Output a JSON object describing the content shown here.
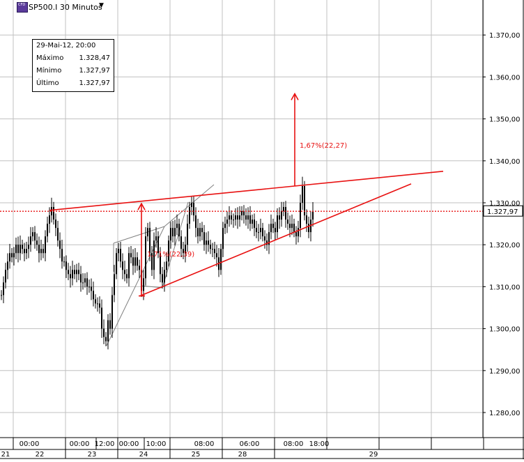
{
  "window": {
    "symbol_title": "SP500.I 30 Minutos",
    "dropdown_icon": "caret-down-icon",
    "symbol_icon": "cfd-icon",
    "icon_text": "CFD"
  },
  "info_box": {
    "date": "29-Mai-12, 20:00",
    "rows": [
      {
        "label": "Máximo",
        "value": "1.328,47"
      },
      {
        "label": "Mínimo",
        "value": "1.327,97"
      },
      {
        "label": "Último",
        "value": "1.327,97"
      }
    ]
  },
  "current_price_label": "1.327,97",
  "colors": {
    "accent": "#e81010",
    "candles": "#000000",
    "grid": "#c0c0c0",
    "wedge_lines": "#808080"
  },
  "annotations": {
    "upper_target_pct": "1,67%(22,27)",
    "lower_target_pct": "1,71%(22,39)"
  },
  "x_axis": {
    "time_labels": [
      "00:00",
      "00:00",
      "12:00",
      "00:00",
      "10:00",
      "08:00",
      "06:00",
      "08:00",
      "18:00"
    ],
    "date_labels": [
      "21",
      "22",
      "23",
      "24",
      "25",
      "28",
      "29"
    ]
  },
  "chart_data": {
    "type": "candlestick",
    "title": "SP500.I 30 Minutos",
    "ylim": [
      1275,
      1380
    ],
    "y_ticks": [
      "1.280,00",
      "1.290,00",
      "1.300,00",
      "1.310,00",
      "1.320,00",
      "1.330,00",
      "1.340,00",
      "1.350,00",
      "1.360,00",
      "1.370,00"
    ],
    "last_price": 1327.97,
    "series": [
      {
        "points": [
          [
            0,
            1308
          ],
          [
            3,
            1311
          ],
          [
            6,
            1314
          ],
          [
            9,
            1316
          ],
          [
            12,
            1318
          ],
          [
            15,
            1317
          ],
          [
            18,
            1318
          ],
          [
            21,
            1320
          ],
          [
            24,
            1318
          ],
          [
            27,
            1320
          ],
          [
            30,
            1319
          ],
          [
            33,
            1318
          ],
          [
            36,
            1319
          ],
          [
            39,
            1320
          ],
          [
            42,
            1322
          ],
          [
            45,
            1323
          ],
          [
            48,
            1321
          ],
          [
            51,
            1320
          ],
          [
            54,
            1318
          ],
          [
            57,
            1319
          ],
          [
            60,
            1318
          ],
          [
            63,
            1322
          ],
          [
            66,
            1325
          ],
          [
            69,
            1327
          ],
          [
            72,
            1329
          ],
          [
            75,
            1326
          ],
          [
            78,
            1324
          ],
          [
            81,
            1321
          ],
          [
            84,
            1319
          ],
          [
            87,
            1316
          ],
          [
            90,
            1316
          ],
          [
            93,
            1314
          ],
          [
            96,
            1313
          ],
          [
            99,
            1312
          ],
          [
            102,
            1314
          ],
          [
            105,
            1313
          ],
          [
            108,
            1314
          ],
          [
            111,
            1313
          ],
          [
            114,
            1311
          ],
          [
            117,
            1311
          ],
          [
            120,
            1312
          ],
          [
            123,
            1310
          ],
          [
            126,
            1310
          ],
          [
            129,
            1309
          ],
          [
            132,
            1307
          ],
          [
            135,
            1306
          ],
          [
            138,
            1306
          ],
          [
            141,
            1305
          ],
          [
            144,
            1300
          ],
          [
            147,
            1298
          ],
          [
            150,
            1297
          ],
          [
            153,
            1302
          ],
          [
            156,
            1300
          ],
          [
            159,
            1308
          ],
          [
            162,
            1313
          ],
          [
            165,
            1318
          ],
          [
            168,
            1319
          ],
          [
            171,
            1316
          ],
          [
            174,
            1314
          ],
          [
            177,
            1313
          ],
          [
            180,
            1312
          ],
          [
            183,
            1318
          ],
          [
            186,
            1317
          ],
          [
            189,
            1315
          ],
          [
            192,
            1317
          ],
          [
            195,
            1315
          ],
          [
            198,
            1314
          ],
          [
            201,
            1309
          ],
          [
            204,
            1312
          ],
          [
            207,
            1322
          ],
          [
            210,
            1324
          ],
          [
            213,
            1318
          ],
          [
            216,
            1314
          ],
          [
            219,
            1321
          ],
          [
            222,
            1322
          ],
          [
            225,
            1318
          ],
          [
            228,
            1313
          ],
          [
            231,
            1311
          ],
          [
            234,
            1314
          ],
          [
            237,
            1316
          ],
          [
            240,
            1321
          ],
          [
            243,
            1324
          ],
          [
            246,
            1322
          ],
          [
            249,
            1324
          ],
          [
            252,
            1325
          ],
          [
            255,
            1322
          ],
          [
            258,
            1319
          ],
          [
            261,
            1318
          ],
          [
            264,
            1320
          ],
          [
            267,
            1325
          ],
          [
            270,
            1329
          ],
          [
            273,
            1330
          ],
          [
            276,
            1327
          ],
          [
            279,
            1324
          ],
          [
            282,
            1322
          ],
          [
            285,
            1324
          ],
          [
            288,
            1323
          ],
          [
            291,
            1320
          ],
          [
            294,
            1321
          ],
          [
            297,
            1320
          ],
          [
            300,
            1319
          ],
          [
            303,
            1319
          ],
          [
            306,
            1318
          ],
          [
            309,
            1317
          ],
          [
            312,
            1314
          ],
          [
            315,
            1319
          ],
          [
            318,
            1324
          ],
          [
            321,
            1325
          ],
          [
            324,
            1326
          ],
          [
            327,
            1327
          ],
          [
            330,
            1326
          ],
          [
            333,
            1326
          ],
          [
            336,
            1327
          ],
          [
            339,
            1326
          ],
          [
            342,
            1327
          ],
          [
            345,
            1328
          ],
          [
            348,
            1327
          ],
          [
            351,
            1326
          ],
          [
            354,
            1327
          ],
          [
            357,
            1325
          ],
          [
            360,
            1326
          ],
          [
            363,
            1324
          ],
          [
            366,
            1323
          ],
          [
            369,
            1323
          ],
          [
            372,
            1324
          ],
          [
            375,
            1322
          ],
          [
            378,
            1321
          ],
          [
            381,
            1320
          ],
          [
            384,
            1323
          ],
          [
            387,
            1325
          ],
          [
            390,
            1324
          ],
          [
            393,
            1323
          ],
          [
            396,
            1327
          ],
          [
            399,
            1326
          ],
          [
            402,
            1328
          ],
          [
            405,
            1329
          ],
          [
            408,
            1326
          ],
          [
            411,
            1325
          ],
          [
            414,
            1324
          ],
          [
            417,
            1325
          ],
          [
            420,
            1323
          ],
          [
            423,
            1322
          ],
          [
            426,
            1324
          ],
          [
            429,
            1330
          ],
          [
            432,
            1334
          ],
          [
            435,
            1327
          ],
          [
            438,
            1325
          ],
          [
            441,
            1323
          ],
          [
            444,
            1326
          ],
          [
            447,
            1327.97
          ]
        ]
      }
    ],
    "trend_lines": [
      {
        "name": "upper-trendline",
        "from": [
          71,
          1328.2
        ],
        "to": [
          636,
          1337.5
        ]
      },
      {
        "name": "lower-trendline",
        "from": [
          201,
          1307.8
        ],
        "to": [
          590,
          1334.5
        ]
      }
    ],
    "target_arrows": [
      {
        "x": 203,
        "from": 1307.8,
        "to": 1329.8
      },
      {
        "x": 423,
        "from": 1334,
        "to": 1356
      }
    ],
    "grid": true
  }
}
